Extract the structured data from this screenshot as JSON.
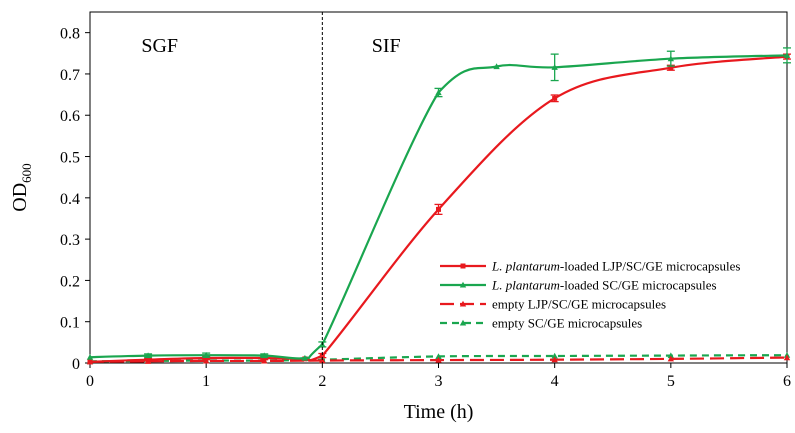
{
  "chart_data": {
    "type": "line",
    "title": "",
    "xlabel": "Time (h)",
    "ylabel": {
      "main": "OD",
      "sub": "600"
    },
    "xlim": [
      0,
      6
    ],
    "ylim": [
      0,
      0.85
    ],
    "xticks": [
      "0",
      "1",
      "2",
      "3",
      "4",
      "5",
      "6"
    ],
    "yticks": [
      "0",
      "0.1",
      "0.2",
      "0.3",
      "0.4",
      "0.5",
      "0.6",
      "0.7",
      "0.8"
    ],
    "grid": false,
    "divider_x": 2,
    "regions": [
      {
        "label": "SGF",
        "x": 0.6
      },
      {
        "label": "SIF",
        "x": 2.55
      }
    ],
    "legend_position": "lower-right",
    "series": [
      {
        "name": "L. plantarum-loaded LJP/SC/GE microcapsules",
        "legend_italic": "L. plantarum",
        "legend_rest": "-loaded LJP/SC/GE microcapsules",
        "color": "#e8191e",
        "dash": "solid",
        "marker": "square",
        "x": [
          0,
          0.5,
          1,
          1.5,
          1.85,
          2,
          3,
          4,
          5,
          6
        ],
        "y": [
          0.003,
          0.008,
          0.012,
          0.012,
          0.01,
          0.018,
          0.372,
          0.641,
          0.715,
          0.742
        ],
        "err": [
          0,
          0.003,
          0.004,
          0.004,
          0,
          0.005,
          0.012,
          0.008,
          0.006,
          0.006
        ]
      },
      {
        "name": "L. plantarum-loaded SC/GE microcapsules",
        "legend_italic": "L. plantarum",
        "legend_rest": "-loaded SC/GE microcapsules",
        "color": "#1aa64f",
        "dash": "solid",
        "marker": "triangle",
        "x": [
          0,
          0.5,
          1,
          1.5,
          1.85,
          2,
          3,
          3.5,
          4,
          5,
          6
        ],
        "y": [
          0.014,
          0.018,
          0.019,
          0.018,
          0.012,
          0.045,
          0.655,
          0.718,
          0.716,
          0.737,
          0.745
        ],
        "err": [
          0,
          0.004,
          0.005,
          0.004,
          0,
          0.006,
          0.01,
          0,
          0.032,
          0.018,
          0.018
        ]
      },
      {
        "name": "empty LJP/SC/GE microcapsules",
        "legend_italic": "",
        "legend_rest": "empty LJP/SC/GE microcapsules",
        "color": "#e8191e",
        "dash": "longdash",
        "marker": "triangle",
        "x": [
          0,
          0.5,
          1,
          1.5,
          2,
          3,
          4,
          5,
          6
        ],
        "y": [
          0.003,
          0.004,
          0.005,
          0.005,
          0.006,
          0.007,
          0.008,
          0.01,
          0.013
        ],
        "err": [
          0,
          0,
          0,
          0,
          0,
          0,
          0,
          0,
          0
        ]
      },
      {
        "name": "empty SC/GE microcapsules",
        "legend_italic": "",
        "legend_rest": "empty SC/GE microcapsules",
        "color": "#1aa64f",
        "dash": "shortdash",
        "marker": "triangle",
        "x": [
          0,
          0.5,
          1,
          1.5,
          2,
          3,
          4,
          5,
          6
        ],
        "y": [
          0.004,
          0.005,
          0.006,
          0.006,
          0.008,
          0.016,
          0.017,
          0.018,
          0.019
        ],
        "err": [
          0,
          0,
          0,
          0,
          0,
          0,
          0,
          0,
          0
        ]
      }
    ]
  }
}
